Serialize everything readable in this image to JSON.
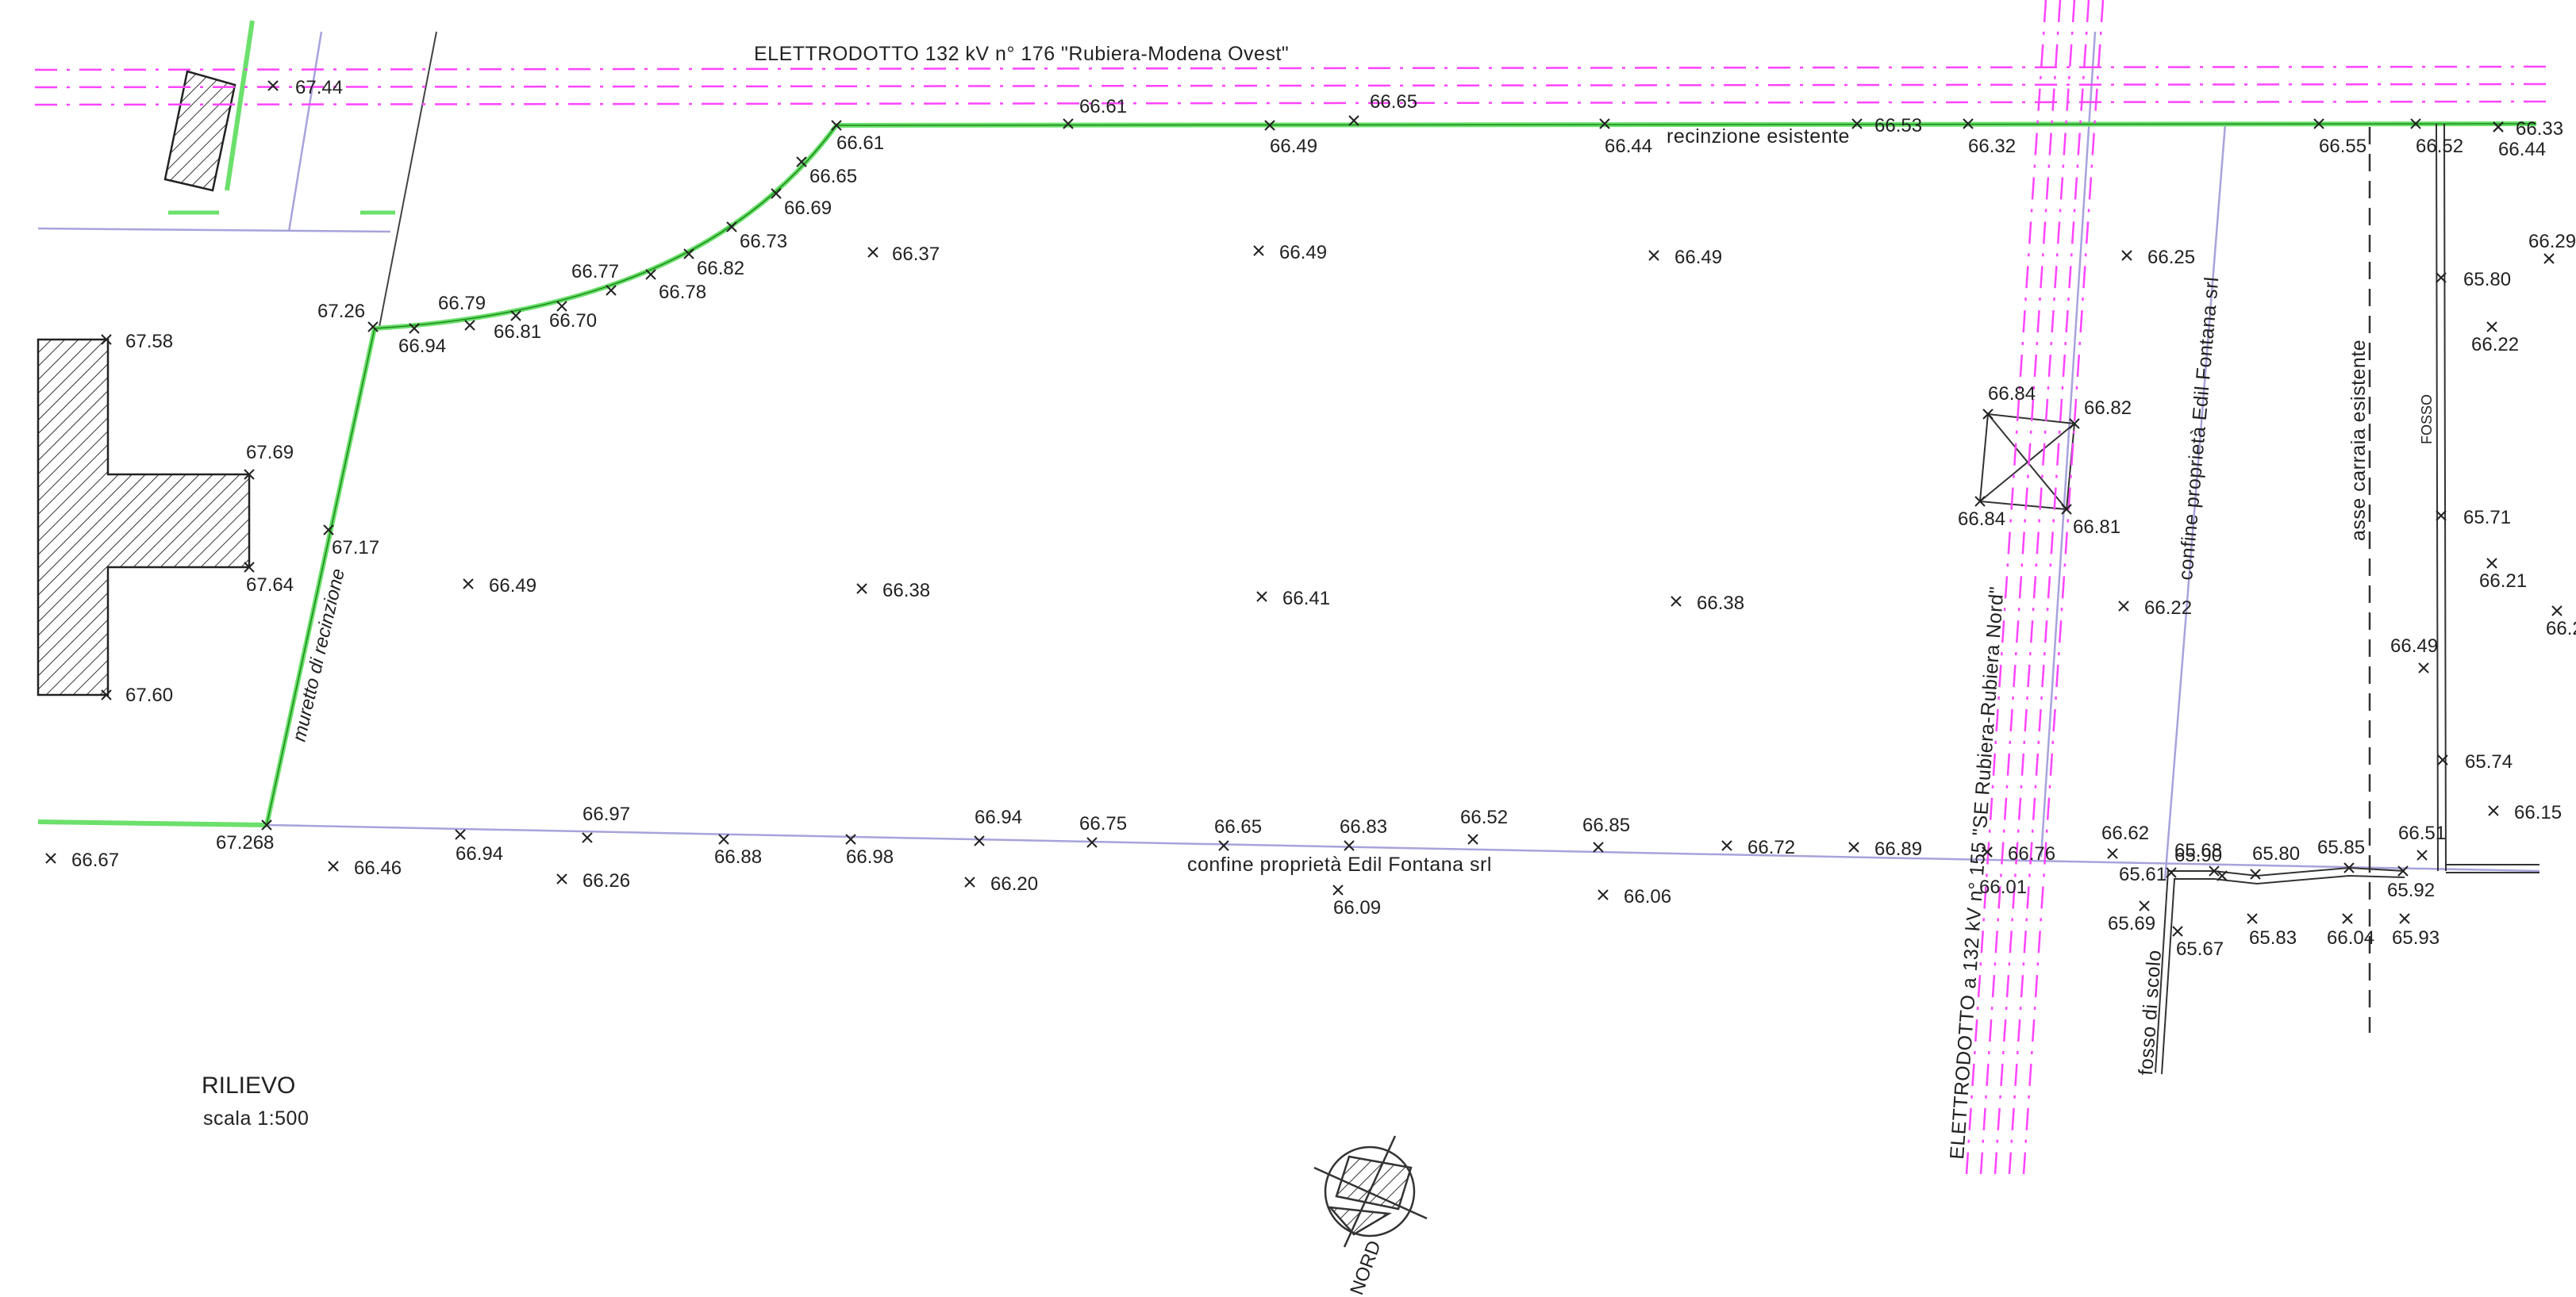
{
  "labels": {
    "power_line_north": "ELETTRODOTTO 132 kV n° 176 \"Rubiera-Modena Ovest\"",
    "power_line_vertical": "ELETTRODOTTO a 132 kV n° 155 \"SE Rubiera-Rubiera Nord\"",
    "fence_existing": "recinzione esistente",
    "fence_wall": "muretto di recinzione",
    "property_boundary_south": "confine proprietà Edil Fontana srl",
    "property_boundary_east": "confine proprietà Edil Fontana srl",
    "drive_axis": "asse carraia esistente",
    "ditch": "FOSSO",
    "drain_ditch": "fosso di scolo"
  },
  "title": {
    "main": "RILIEVO",
    "scale": "scala 1:500"
  },
  "north_label": "NORD",
  "spot_heights": [
    {
      "v": "67.44"
    },
    {
      "v": "66.61"
    },
    {
      "v": "66.61"
    },
    {
      "v": "66.65"
    },
    {
      "v": "66.49"
    },
    {
      "v": "66.44"
    },
    {
      "v": "66.53"
    },
    {
      "v": "66.32"
    },
    {
      "v": "66.55"
    },
    {
      "v": "66.52"
    },
    {
      "v": "66.33"
    },
    {
      "v": "66.44"
    },
    {
      "v": "66.65"
    },
    {
      "v": "66.69"
    },
    {
      "v": "66.73"
    },
    {
      "v": "66.82"
    },
    {
      "v": "66.78"
    },
    {
      "v": "66.77"
    },
    {
      "v": "66.70"
    },
    {
      "v": "66.79"
    },
    {
      "v": "66.81"
    },
    {
      "v": "66.94"
    },
    {
      "v": "67.26"
    },
    {
      "v": "66.37"
    },
    {
      "v": "66.49"
    },
    {
      "v": "66.49"
    },
    {
      "v": "66.25"
    },
    {
      "v": "66.29"
    },
    {
      "v": "65.80"
    },
    {
      "v": "66.22"
    },
    {
      "v": "67.58"
    },
    {
      "v": "67.69"
    },
    {
      "v": "67.64"
    },
    {
      "v": "67.60"
    },
    {
      "v": "67.17"
    },
    {
      "v": "66.49"
    },
    {
      "v": "66.38"
    },
    {
      "v": "66.41"
    },
    {
      "v": "66.38"
    },
    {
      "v": "66.84"
    },
    {
      "v": "66.82"
    },
    {
      "v": "66.84"
    },
    {
      "v": "66.81"
    },
    {
      "v": "66.22"
    },
    {
      "v": "65.71"
    },
    {
      "v": "66.21"
    },
    {
      "v": "66.2"
    },
    {
      "v": "66.49"
    },
    {
      "v": "65.74"
    },
    {
      "v": "66.15"
    },
    {
      "v": "66.67"
    },
    {
      "v": "67.268"
    },
    {
      "v": "66.46"
    },
    {
      "v": "66.94"
    },
    {
      "v": "66.97"
    },
    {
      "v": "66.26"
    },
    {
      "v": "66.88"
    },
    {
      "v": "66.98"
    },
    {
      "v": "66.94"
    },
    {
      "v": "66.20"
    },
    {
      "v": "66.75"
    },
    {
      "v": "66.65"
    },
    {
      "v": "66.83"
    },
    {
      "v": "66.09"
    },
    {
      "v": "66.52"
    },
    {
      "v": "66.85"
    },
    {
      "v": "66.06"
    },
    {
      "v": "66.72"
    },
    {
      "v": "66.89"
    },
    {
      "v": "66.76"
    },
    {
      "v": "66.01"
    },
    {
      "v": "66.62"
    },
    {
      "v": "65.61"
    },
    {
      "v": "65.69"
    },
    {
      "v": "65.68"
    },
    {
      "v": "65.90"
    },
    {
      "v": "65.67"
    },
    {
      "v": "65.80"
    },
    {
      "v": "65.83"
    },
    {
      "v": "65.85"
    },
    {
      "v": "66.04"
    },
    {
      "v": "66.51"
    },
    {
      "v": "65.92"
    },
    {
      "v": "65.93"
    }
  ]
}
